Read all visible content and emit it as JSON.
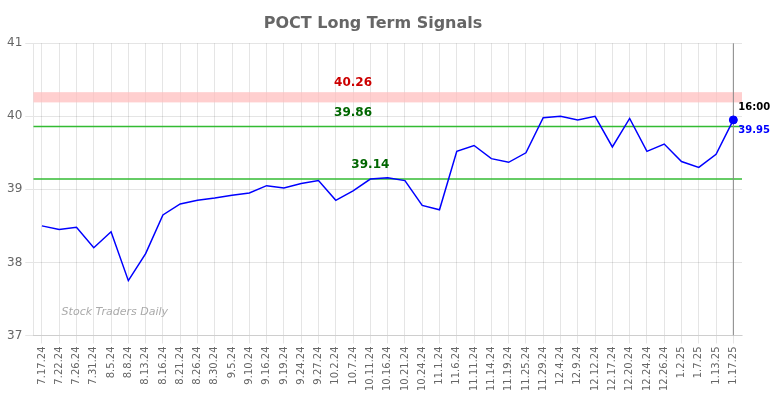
{
  "chart_data": {
    "type": "line",
    "title": "POCT Long Term Signals",
    "categories": [
      "7.17.24",
      "7.22.24",
      "7.26.24",
      "7.31.24",
      "8.5.24",
      "8.8.24",
      "8.13.24",
      "8.16.24",
      "8.21.24",
      "8.26.24",
      "8.30.24",
      "9.5.24",
      "9.10.24",
      "9.16.24",
      "9.19.24",
      "9.24.24",
      "9.27.24",
      "10.2.24",
      "10.7.24",
      "10.11.24",
      "10.16.24",
      "10.21.24",
      "10.24.24",
      "11.1.24",
      "11.6.24",
      "11.11.24",
      "11.14.24",
      "11.19.24",
      "11.25.24",
      "11.29.24",
      "12.4.24",
      "12.9.24",
      "12.12.24",
      "12.17.24",
      "12.20.24",
      "12.24.24",
      "12.26.24",
      "1.2.25",
      "1.7.25",
      "1.13.25",
      "1.17.25"
    ],
    "series": [
      {
        "color": "blue",
        "values": [
          38.5,
          38.45,
          38.48,
          38.2,
          38.42,
          37.75,
          38.12,
          38.65,
          38.8,
          38.85,
          38.88,
          38.92,
          38.95,
          39.05,
          39.02,
          39.08,
          39.12,
          38.85,
          38.98,
          39.14,
          39.16,
          39.12,
          38.78,
          38.72,
          39.52,
          39.6,
          39.42,
          39.37,
          39.5,
          39.98,
          40.0,
          39.95,
          40.0,
          39.58,
          39.97,
          39.52,
          39.62,
          39.38,
          39.3,
          39.48,
          39.95
        ]
      }
    ],
    "ylim": [
      37,
      41
    ],
    "yticks": [
      37,
      38,
      39,
      40,
      41
    ],
    "grid": true,
    "bands": [
      {
        "from": 40.19,
        "to": 40.33,
        "color": "#ffbbbb"
      }
    ],
    "reference_lines": [
      {
        "value": 39.86,
        "color": "#33bb33"
      },
      {
        "value": 39.14,
        "color": "#33bb33"
      }
    ],
    "annotations": [
      {
        "text": "40.26",
        "x": "10.7.24",
        "y": 40.26,
        "color": "#cc0000"
      },
      {
        "text": "39.86",
        "x": "10.7.24",
        "y": 39.86,
        "color": "#006600"
      },
      {
        "text": "39.14",
        "x": "10.11.24",
        "y": 39.14,
        "color": "#006600"
      }
    ],
    "last_point": {
      "x": "1.17.25",
      "y": 39.95,
      "time": "16:00",
      "color": "blue",
      "line_color": "#888888"
    },
    "watermark": {
      "text": "Stock Traders Daily",
      "color": "#aaaaaa"
    }
  }
}
